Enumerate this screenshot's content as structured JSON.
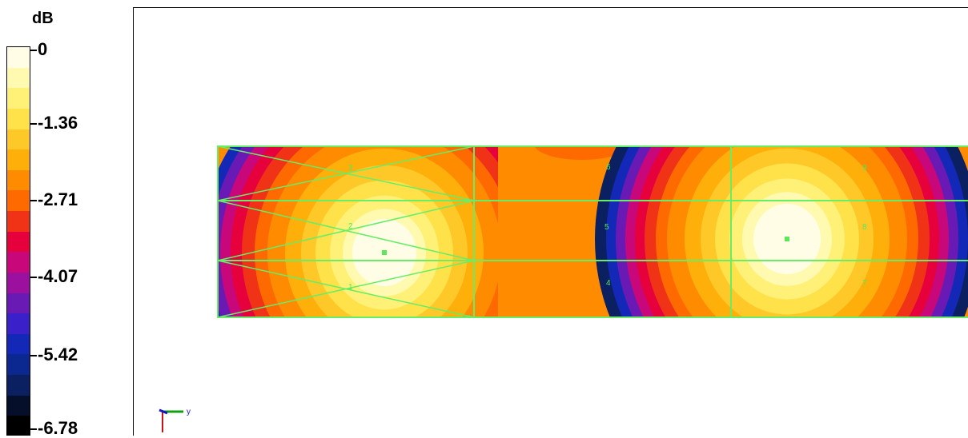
{
  "legend": {
    "unit": "dB",
    "tick_labels": [
      "0",
      "-1.36",
      "-2.71",
      "-4.07",
      "-5.42",
      "-6.78"
    ],
    "colors": [
      "#fffde6",
      "#fffab0",
      "#fff078",
      "#ffe14a",
      "#ffc829",
      "#ffaf0a",
      "#ff8c00",
      "#ff6a00",
      "#f03217",
      "#e6003c",
      "#c8087a",
      "#9c10a0",
      "#6a1ab4",
      "#3a20c8",
      "#1428b8",
      "#0a2890",
      "#0a2060",
      "#050f2a",
      "#000000"
    ]
  },
  "axis_triad": {
    "label": "y"
  },
  "mesh": {
    "element_labels": [
      "1",
      "2",
      "3",
      "4",
      "5",
      "6",
      "7",
      "8",
      "9"
    ]
  },
  "colors": {
    "mesh_line": "#66ee66",
    "node_marker": "#58e858"
  }
}
